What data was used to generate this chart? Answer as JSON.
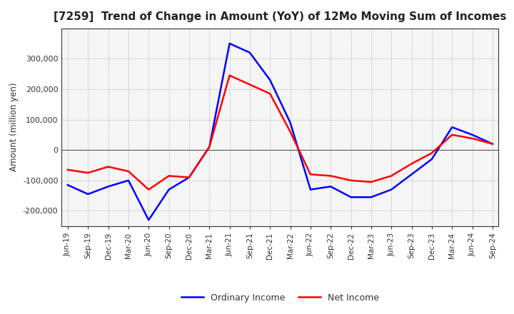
{
  "title": "[7259]  Trend of Change in Amount (YoY) of 12Mo Moving Sum of Incomes",
  "ylabel": "Amount (million yen)",
  "x_labels": [
    "Jun-19",
    "Sep-19",
    "Dec-19",
    "Mar-20",
    "Jun-20",
    "Sep-20",
    "Dec-20",
    "Mar-21",
    "Jun-21",
    "Sep-21",
    "Dec-21",
    "Mar-22",
    "Jun-22",
    "Sep-22",
    "Dec-22",
    "Mar-23",
    "Jun-23",
    "Sep-23",
    "Dec-23",
    "Mar-24",
    "Jun-24",
    "Sep-24"
  ],
  "ordinary_income": [
    -115000,
    -145000,
    -120000,
    -100000,
    -230000,
    -130000,
    -90000,
    10000,
    350000,
    320000,
    230000,
    90000,
    -130000,
    -120000,
    -155000,
    -155000,
    -130000,
    -80000,
    -30000,
    75000,
    50000,
    20000
  ],
  "net_income": [
    -65000,
    -75000,
    -55000,
    -70000,
    -130000,
    -85000,
    -90000,
    10000,
    245000,
    215000,
    185000,
    60000,
    -80000,
    -85000,
    -100000,
    -105000,
    -85000,
    -45000,
    -10000,
    50000,
    38000,
    20000
  ],
  "ordinary_color": "#0000ff",
  "net_color": "#ff0000",
  "line_width": 1.8,
  "ylim": [
    -250000,
    400000
  ],
  "yticks": [
    -200000,
    -100000,
    0,
    100000,
    200000,
    300000
  ],
  "background_color": "#ffffff",
  "plot_bg_color": "#f5f5f5",
  "grid_color": "#999999",
  "legend_labels": [
    "Ordinary Income",
    "Net Income"
  ]
}
